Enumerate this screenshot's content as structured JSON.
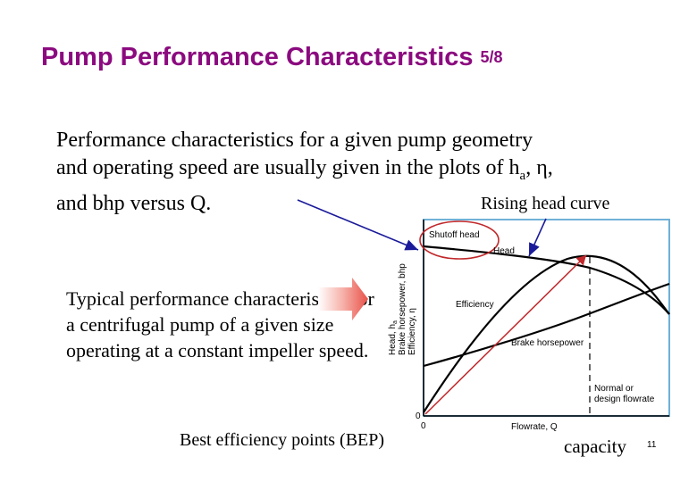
{
  "slide": {
    "title": "Pump Performance Characteristics",
    "title_suffix": "5/8",
    "body_line1": "Performance characteristics for a given pump geometry",
    "body_line2_pre": "and operating speed are usually given in the plots of h",
    "body_line2_sub": "a",
    "body_line2_post": ", η,",
    "body_line3": "and bhp versus Q.",
    "rising_label": "Rising head curve",
    "typical_text": "Typical performance characteristics for a centrifugal pump of a given size operating at a constant impeller speed.",
    "bep_label": "Best efficiency points (BEP)",
    "capacity_label": "capacity",
    "slide_number": "11"
  },
  "figure": {
    "y_axis_label_line1": "Head, h",
    "y_axis_label_line1_sub": "a",
    "y_axis_label_line2": "Brake horsepower, bhp",
    "y_axis_label_line3": "Efficiency, η",
    "label_shutoff": "Shutoff head",
    "label_head": "Head",
    "label_efficiency": "Efficiency",
    "label_bhp": "Brake horsepower",
    "label_normal_line1": "Normal or",
    "label_normal_line2": "design flowrate",
    "label_x_axis": "Flowrate, Q",
    "origin_label_1": "0",
    "origin_label_2": "0"
  },
  "colors": {
    "title": "#8b0a7f",
    "figure_border": "#6fb1d8",
    "pointer_blue": "#1a1a9a",
    "bep_red": "#c0282b",
    "arrow_red": "#e8524a"
  }
}
